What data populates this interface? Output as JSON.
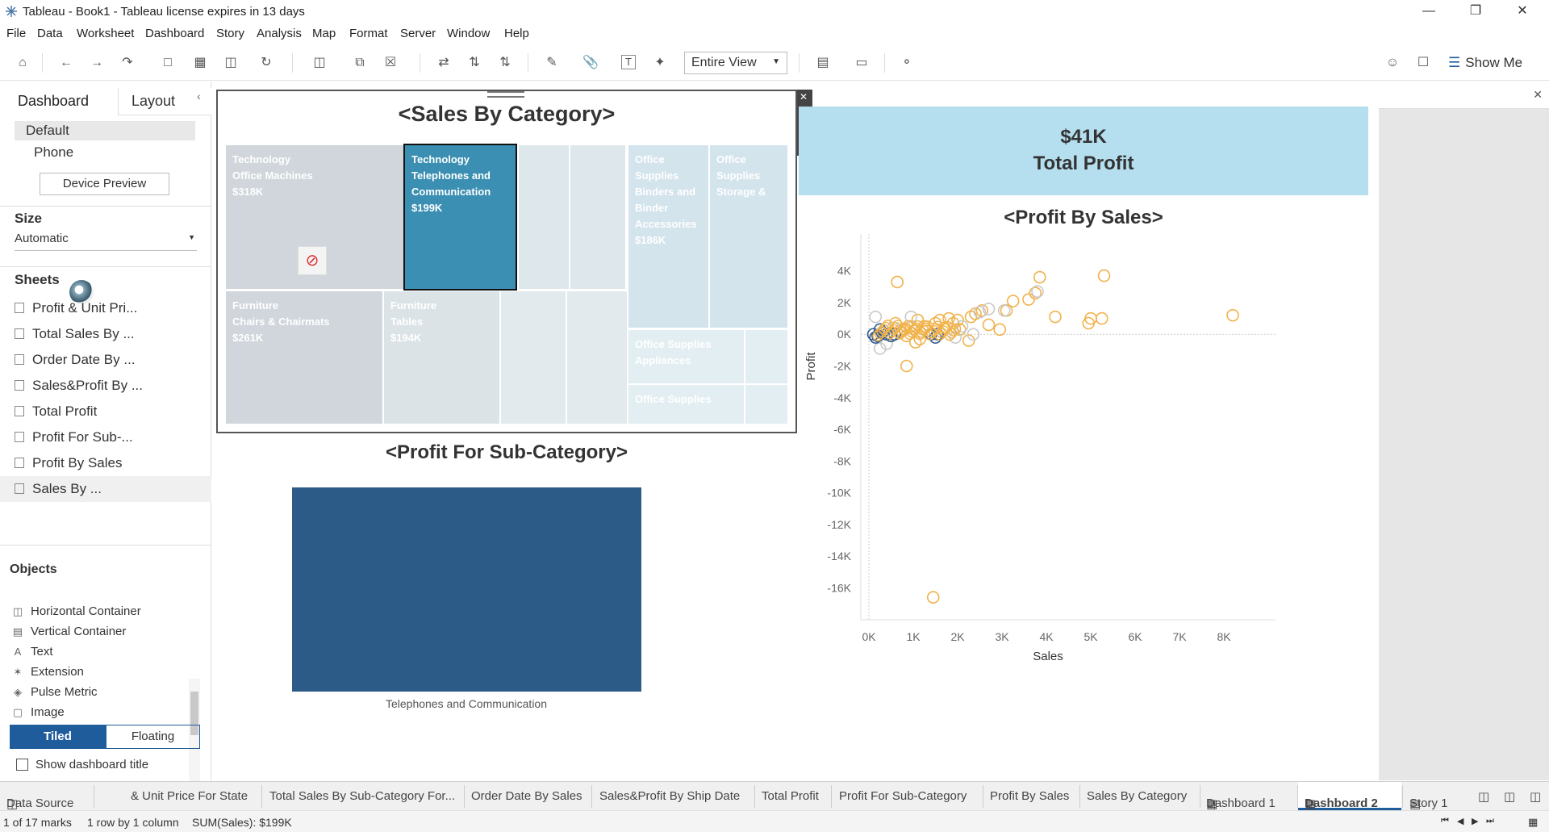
{
  "window": {
    "title": "Tableau - Book1 - Tableau license expires in 13 days"
  },
  "menu": [
    "File",
    "Data",
    "Worksheet",
    "Dashboard",
    "Story",
    "Analysis",
    "Map",
    "Format",
    "Server",
    "Window",
    "Help"
  ],
  "toolbar": {
    "view_select": "Entire View",
    "show_me": "Show Me"
  },
  "left_pane": {
    "tabs": [
      "Dashboard",
      "Layout"
    ],
    "device": {
      "default": "Default",
      "phone": "Phone",
      "preview_button": "Device Preview"
    },
    "size": {
      "heading": "Size",
      "value": "Automatic"
    },
    "sheets": {
      "heading": "Sheets",
      "items": [
        "Profit & Unit Pri...",
        "Total Sales By ...",
        "Order Date By ...",
        "Sales&Profit By ...",
        "Total Profit",
        "Profit For Sub-...",
        "Profit By Sales",
        "Sales By ..."
      ]
    },
    "objects": {
      "heading": "Objects",
      "items": [
        {
          "icon": "horizontal-container-icon",
          "label": "Horizontal Container"
        },
        {
          "icon": "vertical-container-icon",
          "label": "Vertical Container"
        },
        {
          "icon": "text-icon",
          "label": "Text"
        },
        {
          "icon": "extension-icon",
          "label": "Extension"
        },
        {
          "icon": "pulse-metric-icon",
          "label": "Pulse Metric"
        },
        {
          "icon": "image-icon",
          "label": "Image"
        }
      ]
    },
    "layout_mode": {
      "tiled": "Tiled",
      "floating": "Floating"
    },
    "show_title_label": "Show dashboard title"
  },
  "dashboard": {
    "treemap_title": "<Sales By Category>",
    "treemap": [
      {
        "category": "Technology",
        "sub": "Office Machines",
        "value": "$318K"
      },
      {
        "category": "Technology",
        "sub": "Telephones and Communication",
        "value": "$199K",
        "selected": true
      },
      {
        "category": "Office Supplies",
        "sub": "Binders and Binder Accessories",
        "value": "$186K"
      },
      {
        "category": "Office Supplies",
        "sub": "Storage &",
        "value": ""
      },
      {
        "category": "Furniture",
        "sub": "Chairs & Chairmats",
        "value": "$261K"
      },
      {
        "category": "Furniture",
        "sub": "Tables",
        "value": "$194K"
      },
      {
        "category": "Office Supplies",
        "sub": "Appliances",
        "value": ""
      },
      {
        "category": "Office Supplies",
        "sub": "",
        "value": ""
      }
    ],
    "kpi": {
      "value": "$41K",
      "label": "Total Profit"
    },
    "bar_title": "<Profit For Sub-Category>",
    "bar_category": "Telephones and Communication",
    "scatter_title": "<Profit By Sales>"
  },
  "chart_data": [
    {
      "type": "bar",
      "title": "<Profit For Sub-Category>",
      "categories": [
        "Telephones and Communication"
      ],
      "values": [
        1
      ],
      "xlabel": "",
      "ylabel": ""
    },
    {
      "type": "scatter",
      "title": "<Profit By Sales>",
      "xlabel": "Sales",
      "ylabel": "Profit",
      "x_ticks": [
        "0K",
        "1K",
        "2K",
        "3K",
        "4K",
        "5K",
        "6K",
        "7K",
        "8K"
      ],
      "y_ticks": [
        "4K",
        "2K",
        "0K",
        "-2K",
        "-4K",
        "-6K",
        "-8K",
        "-10K",
        "-12K",
        "-14K",
        "-16K"
      ],
      "xlim": [
        0,
        8800
      ],
      "ylim": [
        -17000,
        4800
      ],
      "series": [
        {
          "color": "#f1b24a",
          "points": [
            [
              640,
              3300
            ],
            [
              3850,
              3600
            ],
            [
              5300,
              3700
            ],
            [
              8200,
              1200
            ],
            [
              4200,
              1100
            ],
            [
              5000,
              1000
            ],
            [
              5250,
              1000
            ],
            [
              4950,
              700
            ],
            [
              3750,
              2600
            ],
            [
              3600,
              2200
            ],
            [
              3250,
              2100
            ],
            [
              3100,
              1500
            ],
            [
              2550,
              1500
            ],
            [
              2400,
              1300
            ],
            [
              2700,
              600
            ],
            [
              2950,
              300
            ],
            [
              2050,
              300
            ],
            [
              1800,
              1000
            ],
            [
              1500,
              700
            ],
            [
              1250,
              500
            ],
            [
              1100,
              900
            ],
            [
              950,
              500
            ],
            [
              800,
              300
            ],
            [
              700,
              200
            ],
            [
              600,
              700
            ],
            [
              500,
              -100
            ],
            [
              850,
              -100
            ],
            [
              1050,
              -500
            ],
            [
              2250,
              -400
            ],
            [
              850,
              -2000
            ],
            [
              1450,
              -16600
            ],
            [
              1700,
              400
            ],
            [
              2000,
              900
            ],
            [
              2300,
              1100
            ],
            [
              1300,
              200
            ],
            [
              1150,
              -300
            ],
            [
              1600,
              900
            ],
            [
              1900,
              700
            ]
          ]
        },
        {
          "color": "#c9c9c9",
          "points": [
            [
              150,
              1100
            ],
            [
              3050,
              1500
            ],
            [
              2700,
              1600
            ],
            [
              2500,
              1400
            ],
            [
              3800,
              2700
            ],
            [
              2350,
              0
            ],
            [
              2100,
              500
            ],
            [
              1950,
              -200
            ],
            [
              250,
              -900
            ],
            [
              400,
              -600
            ],
            [
              550,
              400
            ],
            [
              950,
              1100
            ]
          ]
        },
        {
          "color": "#2f5b90",
          "points": [
            [
              100,
              0
            ],
            [
              200,
              -100
            ],
            [
              300,
              100
            ],
            [
              400,
              0
            ],
            [
              500,
              -100
            ],
            [
              580,
              0
            ],
            [
              1400,
              0
            ],
            [
              1550,
              0
            ],
            [
              1500,
              -200
            ],
            [
              250,
              300
            ],
            [
              150,
              -200
            ]
          ]
        }
      ]
    }
  ],
  "bottom_tabs": [
    "Data Source",
    "& Unit Price For State",
    "Total Sales By Sub-Category For...",
    "Order Date By Sales",
    "Sales&Profit By Ship Date",
    "Total Profit",
    "Profit For Sub-Category",
    "Profit By Sales",
    "Sales By Category",
    "Dashboard 1",
    "Dashboard 2",
    "Story 1"
  ],
  "status": {
    "marks": "1 of 17 marks",
    "rows": "1 row by 1 column",
    "sum": "SUM(Sales): $199K"
  },
  "colors": {
    "accent": "#1f5c9c",
    "kpi_bg": "#b5dfef",
    "selected_tile": "#3b8fb2",
    "bar": "#2c5b87"
  }
}
